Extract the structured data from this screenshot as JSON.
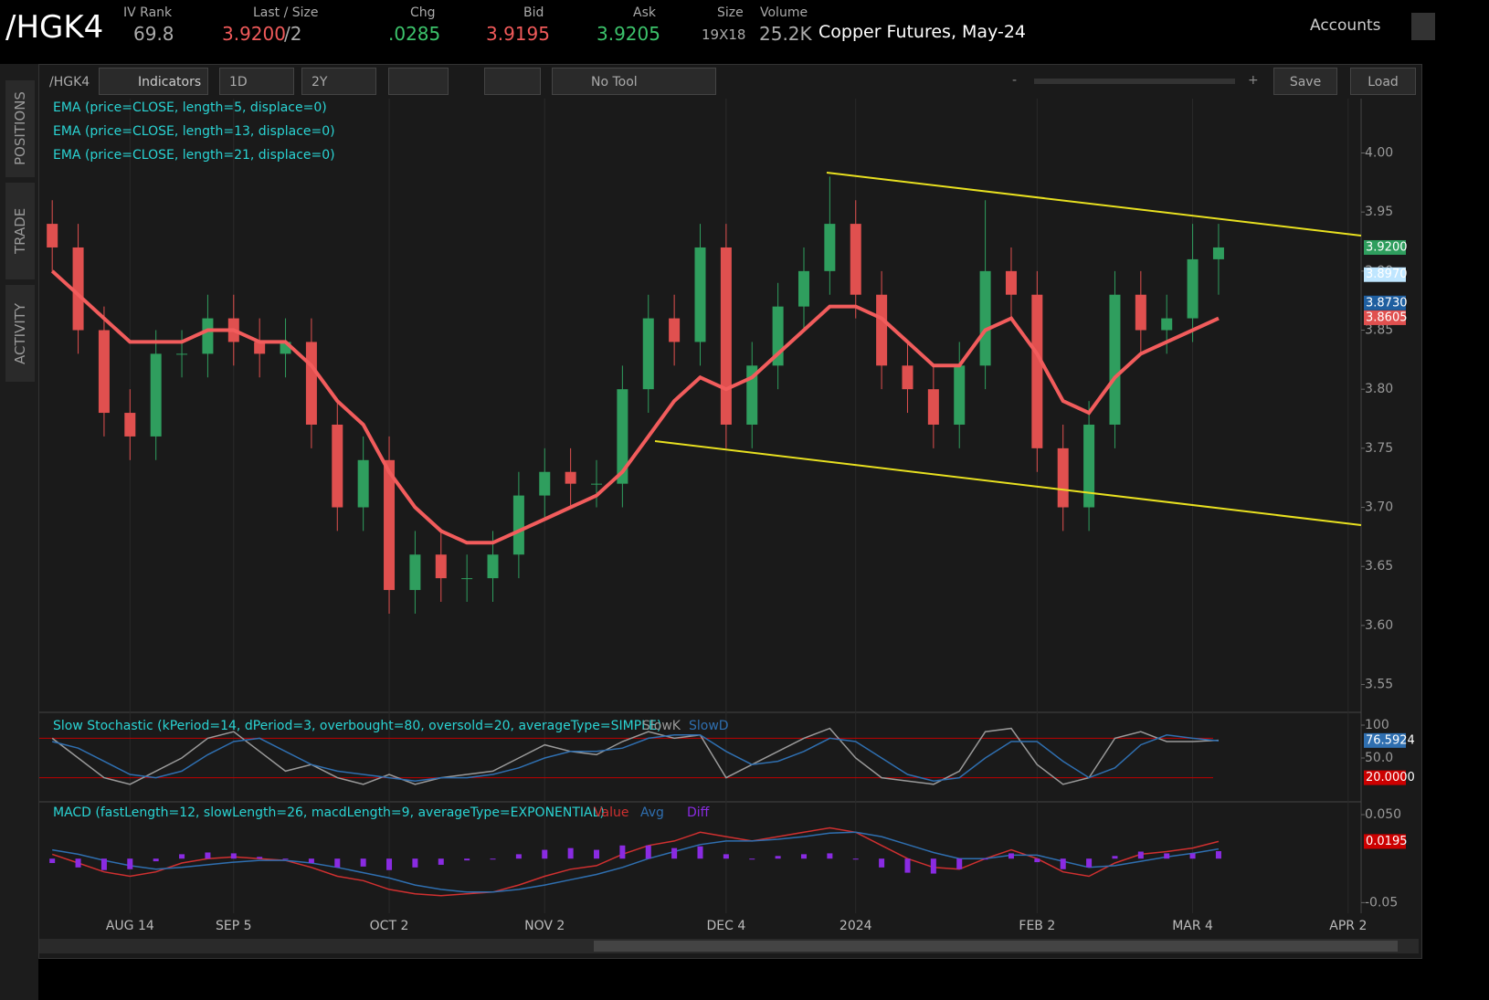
{
  "header": {
    "symbol": "/HGK4",
    "description": "Copper Futures, May-24",
    "accounts": "Accounts",
    "fields": [
      {
        "label": "IV Rank",
        "value": "69.8"
      },
      {
        "label": "Last / Size",
        "value": "3.9200",
        "suffix": "/2"
      },
      {
        "label": "Chg",
        "value": ".0285"
      },
      {
        "label": "Bid",
        "value": "3.9195"
      },
      {
        "label": "Ask",
        "value": "3.9205"
      },
      {
        "label": "Size",
        "value": "19X18"
      },
      {
        "label": "Volume",
        "value": "25.2K"
      }
    ]
  },
  "toolbar": {
    "symbol": "/HGK4",
    "indicators": "Indicators",
    "period": "1D",
    "range": "2Y",
    "tool": "No Tool",
    "zoom_out": "-",
    "zoom_in": "+",
    "save": "Save",
    "load": "Load"
  },
  "side_tabs": [
    "POSITIONS",
    "TRADE",
    "ACTIVITY"
  ],
  "chart_data": [
    {
      "type": "candlestick",
      "up_color": "#2f9e5e",
      "down_color": "#e0504f",
      "grid": true,
      "studies": [
        "EMA (price=CLOSE, length=5, displace=0)",
        "EMA (price=CLOSE, length=13, displace=0)"
      ],
      "categories": [
        null,
        null,
        null,
        "AUG 14",
        null,
        null,
        null,
        "SEP 5",
        null,
        null,
        null,
        null,
        null,
        "OCT 2",
        null,
        null,
        null,
        null,
        null,
        "NOV 2",
        null,
        null,
        null,
        null,
        null,
        null,
        "DEC 4",
        null,
        null,
        null,
        null,
        "2024",
        null,
        null,
        null,
        null,
        null,
        null,
        "FEB 2",
        null,
        null,
        null,
        null,
        null,
        "MAR 4",
        null,
        null,
        null,
        null,
        null,
        "APR 2"
      ],
      "open": [
        3.94,
        3.92,
        3.85,
        3.78,
        3.76,
        3.83,
        3.83,
        3.86,
        3.84,
        3.83,
        3.84,
        3.77,
        3.7,
        3.74,
        3.63,
        3.66,
        3.64,
        3.64,
        3.66,
        3.71,
        3.73,
        3.72,
        3.72,
        3.8,
        3.86,
        3.84,
        3.92,
        3.77,
        3.82,
        3.87,
        3.9,
        3.94,
        3.88,
        3.82,
        3.8,
        3.77,
        3.82,
        3.9,
        3.88,
        3.75,
        3.7,
        3.77,
        3.88,
        3.85,
        3.86,
        3.91,
        null,
        null,
        null,
        null,
        null
      ],
      "high": [
        3.96,
        3.94,
        3.87,
        3.8,
        3.85,
        3.85,
        3.88,
        3.88,
        3.86,
        3.86,
        3.86,
        3.79,
        3.76,
        3.76,
        3.68,
        3.68,
        3.66,
        3.68,
        3.73,
        3.75,
        3.75,
        3.74,
        3.82,
        3.88,
        3.88,
        3.94,
        3.94,
        3.84,
        3.89,
        3.92,
        3.98,
        3.96,
        3.9,
        3.84,
        3.82,
        3.84,
        3.96,
        3.92,
        3.9,
        3.77,
        3.79,
        3.9,
        3.9,
        3.88,
        3.94,
        3.94,
        null,
        null,
        null,
        null,
        null
      ],
      "low": [
        3.9,
        3.83,
        3.76,
        3.74,
        3.74,
        3.81,
        3.81,
        3.82,
        3.81,
        3.81,
        3.75,
        3.68,
        3.68,
        3.61,
        3.61,
        3.62,
        3.62,
        3.62,
        3.64,
        3.69,
        3.7,
        3.7,
        3.7,
        3.78,
        3.82,
        3.82,
        3.75,
        3.75,
        3.8,
        3.85,
        3.88,
        3.86,
        3.8,
        3.78,
        3.75,
        3.75,
        3.8,
        3.86,
        3.73,
        3.68,
        3.68,
        3.75,
        3.83,
        3.83,
        3.84,
        3.88,
        null,
        null,
        null,
        null,
        null
      ],
      "close": [
        3.92,
        3.85,
        3.78,
        3.76,
        3.83,
        3.83,
        3.86,
        3.84,
        3.83,
        3.84,
        3.77,
        3.7,
        3.74,
        3.63,
        3.66,
        3.64,
        3.64,
        3.66,
        3.71,
        3.73,
        3.72,
        3.72,
        3.8,
        3.86,
        3.84,
        3.92,
        3.77,
        3.82,
        3.87,
        3.9,
        3.94,
        3.88,
        3.82,
        3.8,
        3.77,
        3.82,
        3.9,
        3.88,
        3.75,
        3.7,
        3.77,
        3.88,
        3.85,
        3.86,
        3.91,
        3.92,
        null,
        null,
        null,
        null,
        null
      ],
      "series": [
        {
          "name": "EMA (price=CLOSE, length=21, displace=0)",
          "color": "#f25c5c",
          "values": [
            3.9,
            3.88,
            3.86,
            3.84,
            3.84,
            3.84,
            3.85,
            3.85,
            3.84,
            3.84,
            3.82,
            3.79,
            3.77,
            3.73,
            3.7,
            3.68,
            3.67,
            3.67,
            3.68,
            3.69,
            3.7,
            3.71,
            3.73,
            3.76,
            3.79,
            3.81,
            3.8,
            3.81,
            3.83,
            3.85,
            3.87,
            3.87,
            3.86,
            3.84,
            3.82,
            3.82,
            3.85,
            3.86,
            3.83,
            3.79,
            3.78,
            3.81,
            3.83,
            3.84,
            3.85,
            3.86,
            null,
            null,
            null,
            null,
            null
          ]
        }
      ],
      "ylim": [
        3.528,
        4.046
      ],
      "yticks": [
        {
          "value": 4.0,
          "label": "4.00"
        },
        3.95,
        {
          "value": 3.9,
          "label": "3.90"
        },
        3.85,
        {
          "value": 3.8,
          "label": "3.80"
        },
        3.75,
        {
          "value": 3.7,
          "label": "3.70"
        },
        3.65,
        {
          "value": 3.6,
          "label": "3.60"
        },
        3.55
      ],
      "badges": [
        {
          "value": 3.92,
          "label": "3.9200",
          "color": "#2f9e5e"
        },
        {
          "value": 3.897,
          "label": "3.8970",
          "color": "#bfe6ff"
        },
        {
          "value": 3.873,
          "label": "3.8730",
          "color": "#1f5fa0"
        },
        {
          "value": 3.8605,
          "label": "3.8605",
          "color": "#e0504f"
        }
      ]
    },
    {
      "type": "line",
      "title": "Slow Stochastic (kPeriod=14, dPeriod=3, overbought=80, oversold=20, averageType=SIMPLE)",
      "levels": [
        80,
        20
      ],
      "series": [
        {
          "name": "SlowK",
          "color": "#9a9a9a",
          "values": [
            80,
            50,
            20,
            10,
            30,
            50,
            80,
            90,
            60,
            30,
            40,
            20,
            10,
            25,
            10,
            20,
            25,
            30,
            50,
            70,
            60,
            55,
            75,
            90,
            80,
            85,
            20,
            40,
            60,
            80,
            95,
            50,
            20,
            15,
            10,
            30,
            90,
            95,
            40,
            10,
            20,
            80,
            90,
            75,
            75,
            77,
            null,
            null,
            null,
            null,
            null
          ]
        },
        {
          "name": "SlowD",
          "color": "#2f6fb0",
          "values": [
            75,
            65,
            45,
            25,
            20,
            30,
            55,
            75,
            80,
            60,
            40,
            30,
            25,
            20,
            15,
            20,
            20,
            25,
            35,
            50,
            60,
            60,
            65,
            80,
            85,
            85,
            60,
            40,
            45,
            60,
            80,
            75,
            50,
            25,
            15,
            20,
            50,
            75,
            75,
            45,
            20,
            35,
            70,
            85,
            80,
            76,
            null,
            null,
            null,
            null,
            null
          ]
        }
      ],
      "ylim": [
        -12.5,
        112.5
      ],
      "yticks": [
        100,
        {
          "value": 50,
          "label": "50.0"
        }
      ],
      "badges": [
        {
          "value": 76.5924,
          "label": "76.5924",
          "color": "#2f6fb0"
        },
        {
          "value": 20,
          "label": "20.0000",
          "color": "#cc0000"
        }
      ]
    },
    {
      "type": "line",
      "title": "MACD (fastLength=12, slowLength=26, macdLength=9, averageType=EXPONENTIAL)",
      "series": [
        {
          "name": "Value",
          "color": "#d03030",
          "values": [
            0.005,
            -0.005,
            -0.015,
            -0.02,
            -0.015,
            -0.005,
            0,
            0.002,
            0,
            -0.002,
            -0.01,
            -0.02,
            -0.025,
            -0.035,
            -0.04,
            -0.042,
            -0.04,
            -0.038,
            -0.03,
            -0.02,
            -0.012,
            -0.008,
            0.005,
            0.015,
            0.02,
            0.03,
            0.025,
            0.02,
            0.025,
            0.03,
            0.035,
            0.03,
            0.015,
            0,
            -0.01,
            -0.012,
            0,
            0.01,
            0,
            -0.015,
            -0.02,
            -0.005,
            0.005,
            0.008,
            0.012,
            0.0195,
            null,
            null,
            null,
            null,
            null
          ]
        },
        {
          "name": "Avg",
          "color": "#2f6fb0",
          "values": [
            0.01,
            0.005,
            -0.002,
            -0.008,
            -0.012,
            -0.01,
            -0.007,
            -0.004,
            -0.002,
            -0.002,
            -0.005,
            -0.01,
            -0.016,
            -0.022,
            -0.03,
            -0.035,
            -0.038,
            -0.038,
            -0.035,
            -0.03,
            -0.024,
            -0.018,
            -0.01,
            0,
            0.008,
            0.016,
            0.02,
            0.02,
            0.022,
            0.025,
            0.029,
            0.03,
            0.025,
            0.016,
            0.007,
            0,
            0,
            0.004,
            0.004,
            -0.003,
            -0.01,
            -0.008,
            -0.003,
            0.002,
            0.006,
            0.011,
            null,
            null,
            null,
            null,
            null
          ]
        },
        {
          "name": "Diff",
          "color": "#8a2be2",
          "bars": true,
          "values": [
            -0.005,
            -0.01,
            -0.013,
            -0.012,
            -0.003,
            0.005,
            0.007,
            0.006,
            0.002,
            0,
            -0.005,
            -0.01,
            -0.009,
            -0.013,
            -0.01,
            -0.007,
            -0.002,
            0,
            0.005,
            0.01,
            0.012,
            0.01,
            0.015,
            0.015,
            0.012,
            0.014,
            0.005,
            0,
            0.003,
            0.005,
            0.006,
            0,
            -0.01,
            -0.016,
            -0.017,
            -0.012,
            0,
            0.006,
            -0.004,
            -0.012,
            -0.01,
            0.003,
            0.008,
            0.006,
            0.006,
            0.0085,
            null,
            null,
            null,
            null,
            null
          ]
        }
      ],
      "ylim": [
        -0.06,
        0.0625
      ],
      "yticks": [
        {
          "value": 0.05,
          "label": "0.050"
        },
        {
          "value": -0.05,
          "label": "-0.05"
        }
      ],
      "badges": [
        {
          "value": 0.0195,
          "label": "0.0195",
          "color": "#cc0000"
        }
      ]
    }
  ]
}
